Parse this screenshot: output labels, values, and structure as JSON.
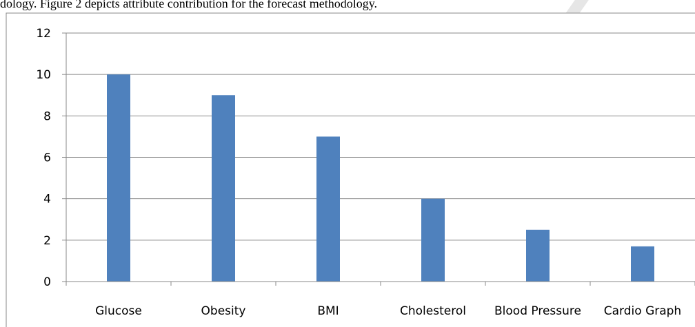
{
  "caption": "dology. Figure 2 depicts attribute contribution for the forecast methodology.",
  "chart_data": {
    "type": "bar",
    "categories": [
      "Glucose",
      "Obesity",
      "BMI",
      "Cholesterol",
      "Blood Pressure",
      "Cardio Graph"
    ],
    "values": [
      10,
      9,
      7,
      4,
      2.5,
      1.7
    ],
    "ylim": [
      0,
      12
    ],
    "yticks": [
      0,
      2,
      4,
      6,
      8,
      10,
      12
    ],
    "grid": true,
    "legend": "none",
    "bar_color": "#4f81bd",
    "grid_color": "#898989"
  }
}
